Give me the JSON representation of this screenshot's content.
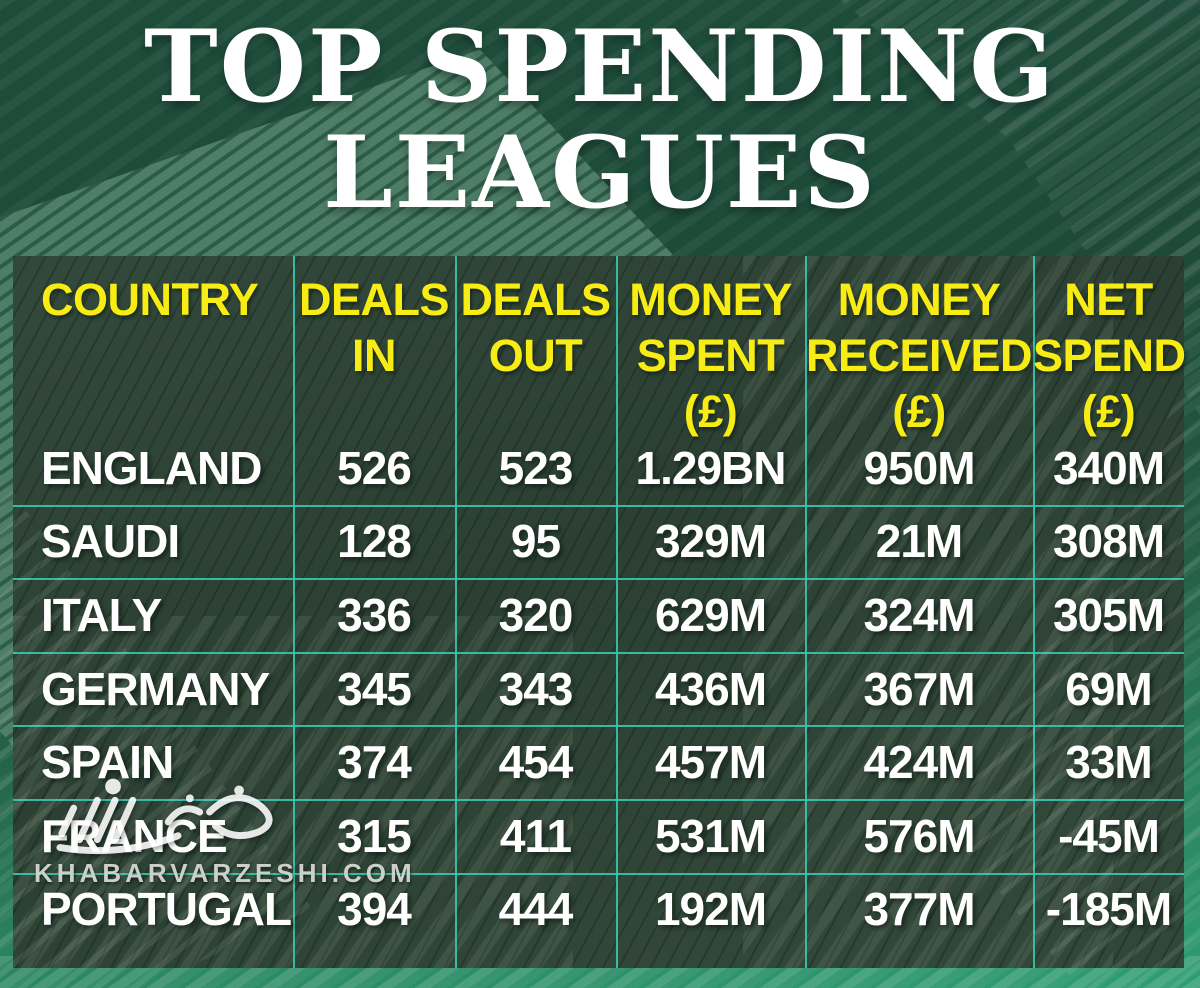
{
  "title": {
    "lines": [
      "TOP SPENDING",
      "LEAGUES"
    ]
  },
  "watermark": {
    "site": "KHABARVARZESHI.COM",
    "logo": "khabarvarzeshi-calligraphy-runner-logo"
  },
  "colors": {
    "background_dark": "#1d4a39",
    "background_light": "#2f9e74",
    "panel": "#2b4033",
    "header_text": "#f7ec13",
    "body_text": "#ffffff",
    "grid_line": "#38c7b2",
    "watermark_text": "#cbd0ca"
  },
  "chart_data": {
    "type": "table",
    "title": "TOP SPENDING LEAGUES",
    "columns": [
      "COUNTRY",
      "DEALS IN",
      "DEALS OUT",
      "MONEY SPENT (£)",
      "MONEY RECEIVED (£)",
      "NET SPEND (£)"
    ],
    "header_lines": [
      [
        "COUNTRY"
      ],
      [
        "DEALS",
        "IN"
      ],
      [
        "DEALS",
        "OUT"
      ],
      [
        "MONEY",
        "SPENT",
        "(£)"
      ],
      [
        "MONEY",
        "RECEIVED",
        "(£)"
      ],
      [
        "NET",
        "SPEND",
        "(£)"
      ]
    ],
    "rows": [
      [
        "ENGLAND",
        "526",
        "523",
        "1.29BN",
        "950M",
        "340M"
      ],
      [
        "SAUDI",
        "128",
        "95",
        "329M",
        "21M",
        "308M"
      ],
      [
        "ITALY",
        "336",
        "320",
        "629M",
        "324M",
        "305M"
      ],
      [
        "GERMANY",
        "345",
        "343",
        "436M",
        "367M",
        "69M"
      ],
      [
        "SPAIN",
        "374",
        "454",
        "457M",
        "424M",
        "33M"
      ],
      [
        "FRANCE",
        "315",
        "411",
        "531M",
        "576M",
        "-45M"
      ],
      [
        "PORTUGAL",
        "394",
        "444",
        "192M",
        "377M",
        "-185M"
      ]
    ]
  }
}
